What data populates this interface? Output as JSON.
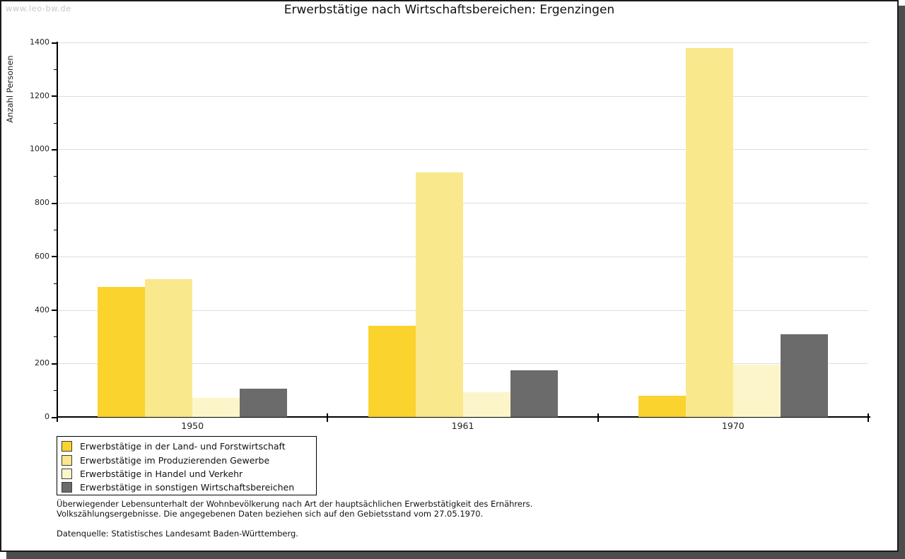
{
  "watermark": "www.leo-bw.de",
  "title": "Erwerbstätige nach Wirtschaftsbereichen: Ergenzingen",
  "chart_data": {
    "type": "bar",
    "title": "Erwerbstätige nach Wirtschaftsbereichen: Ergenzingen",
    "xlabel": "",
    "ylabel": "Anzahl Personen",
    "categories": [
      "1950",
      "1961",
      "1970"
    ],
    "series": [
      {
        "name": "Erwerbstätige in der Land- und Forstwirtschaft",
        "color": "#FBD32F",
        "values": [
          486,
          341,
          79
        ]
      },
      {
        "name": "Erwerbstätige im Produzierenden Gewerbe",
        "color": "#FAE88C",
        "values": [
          515,
          913,
          1379
        ]
      },
      {
        "name": "Erwerbstätige in Handel und Verkehr",
        "color": "#FCF5C9",
        "values": [
          72,
          92,
          195
        ]
      },
      {
        "name": "Erwerbstätige in sonstigen Wirtschaftsbereichen",
        "color": "#6B6B6B",
        "values": [
          106,
          174,
          308
        ]
      }
    ],
    "ylim": [
      0,
      1400
    ],
    "ytick_step": 200,
    "ytick_minor_step": 100,
    "grid": true,
    "legend_position": "bottom-left"
  },
  "colors": {
    "grid": "#dddddd",
    "axis": "#000000",
    "frame_shadow": "#4d4d4d",
    "watermark": "#c8c8c8"
  },
  "footnote": {
    "line1": "Überwiegender Lebensunterhalt der Wohnbevölkerung nach Art der hauptsächlichen Erwerbstätigkeit des Ernährers.",
    "line2": "Volkszählungsergebnisse. Die angegebenen Daten beziehen sich auf den Gebietsstand vom 27.05.1970.",
    "source": "Datenquelle: Statistisches Landesamt Baden-Württemberg."
  }
}
